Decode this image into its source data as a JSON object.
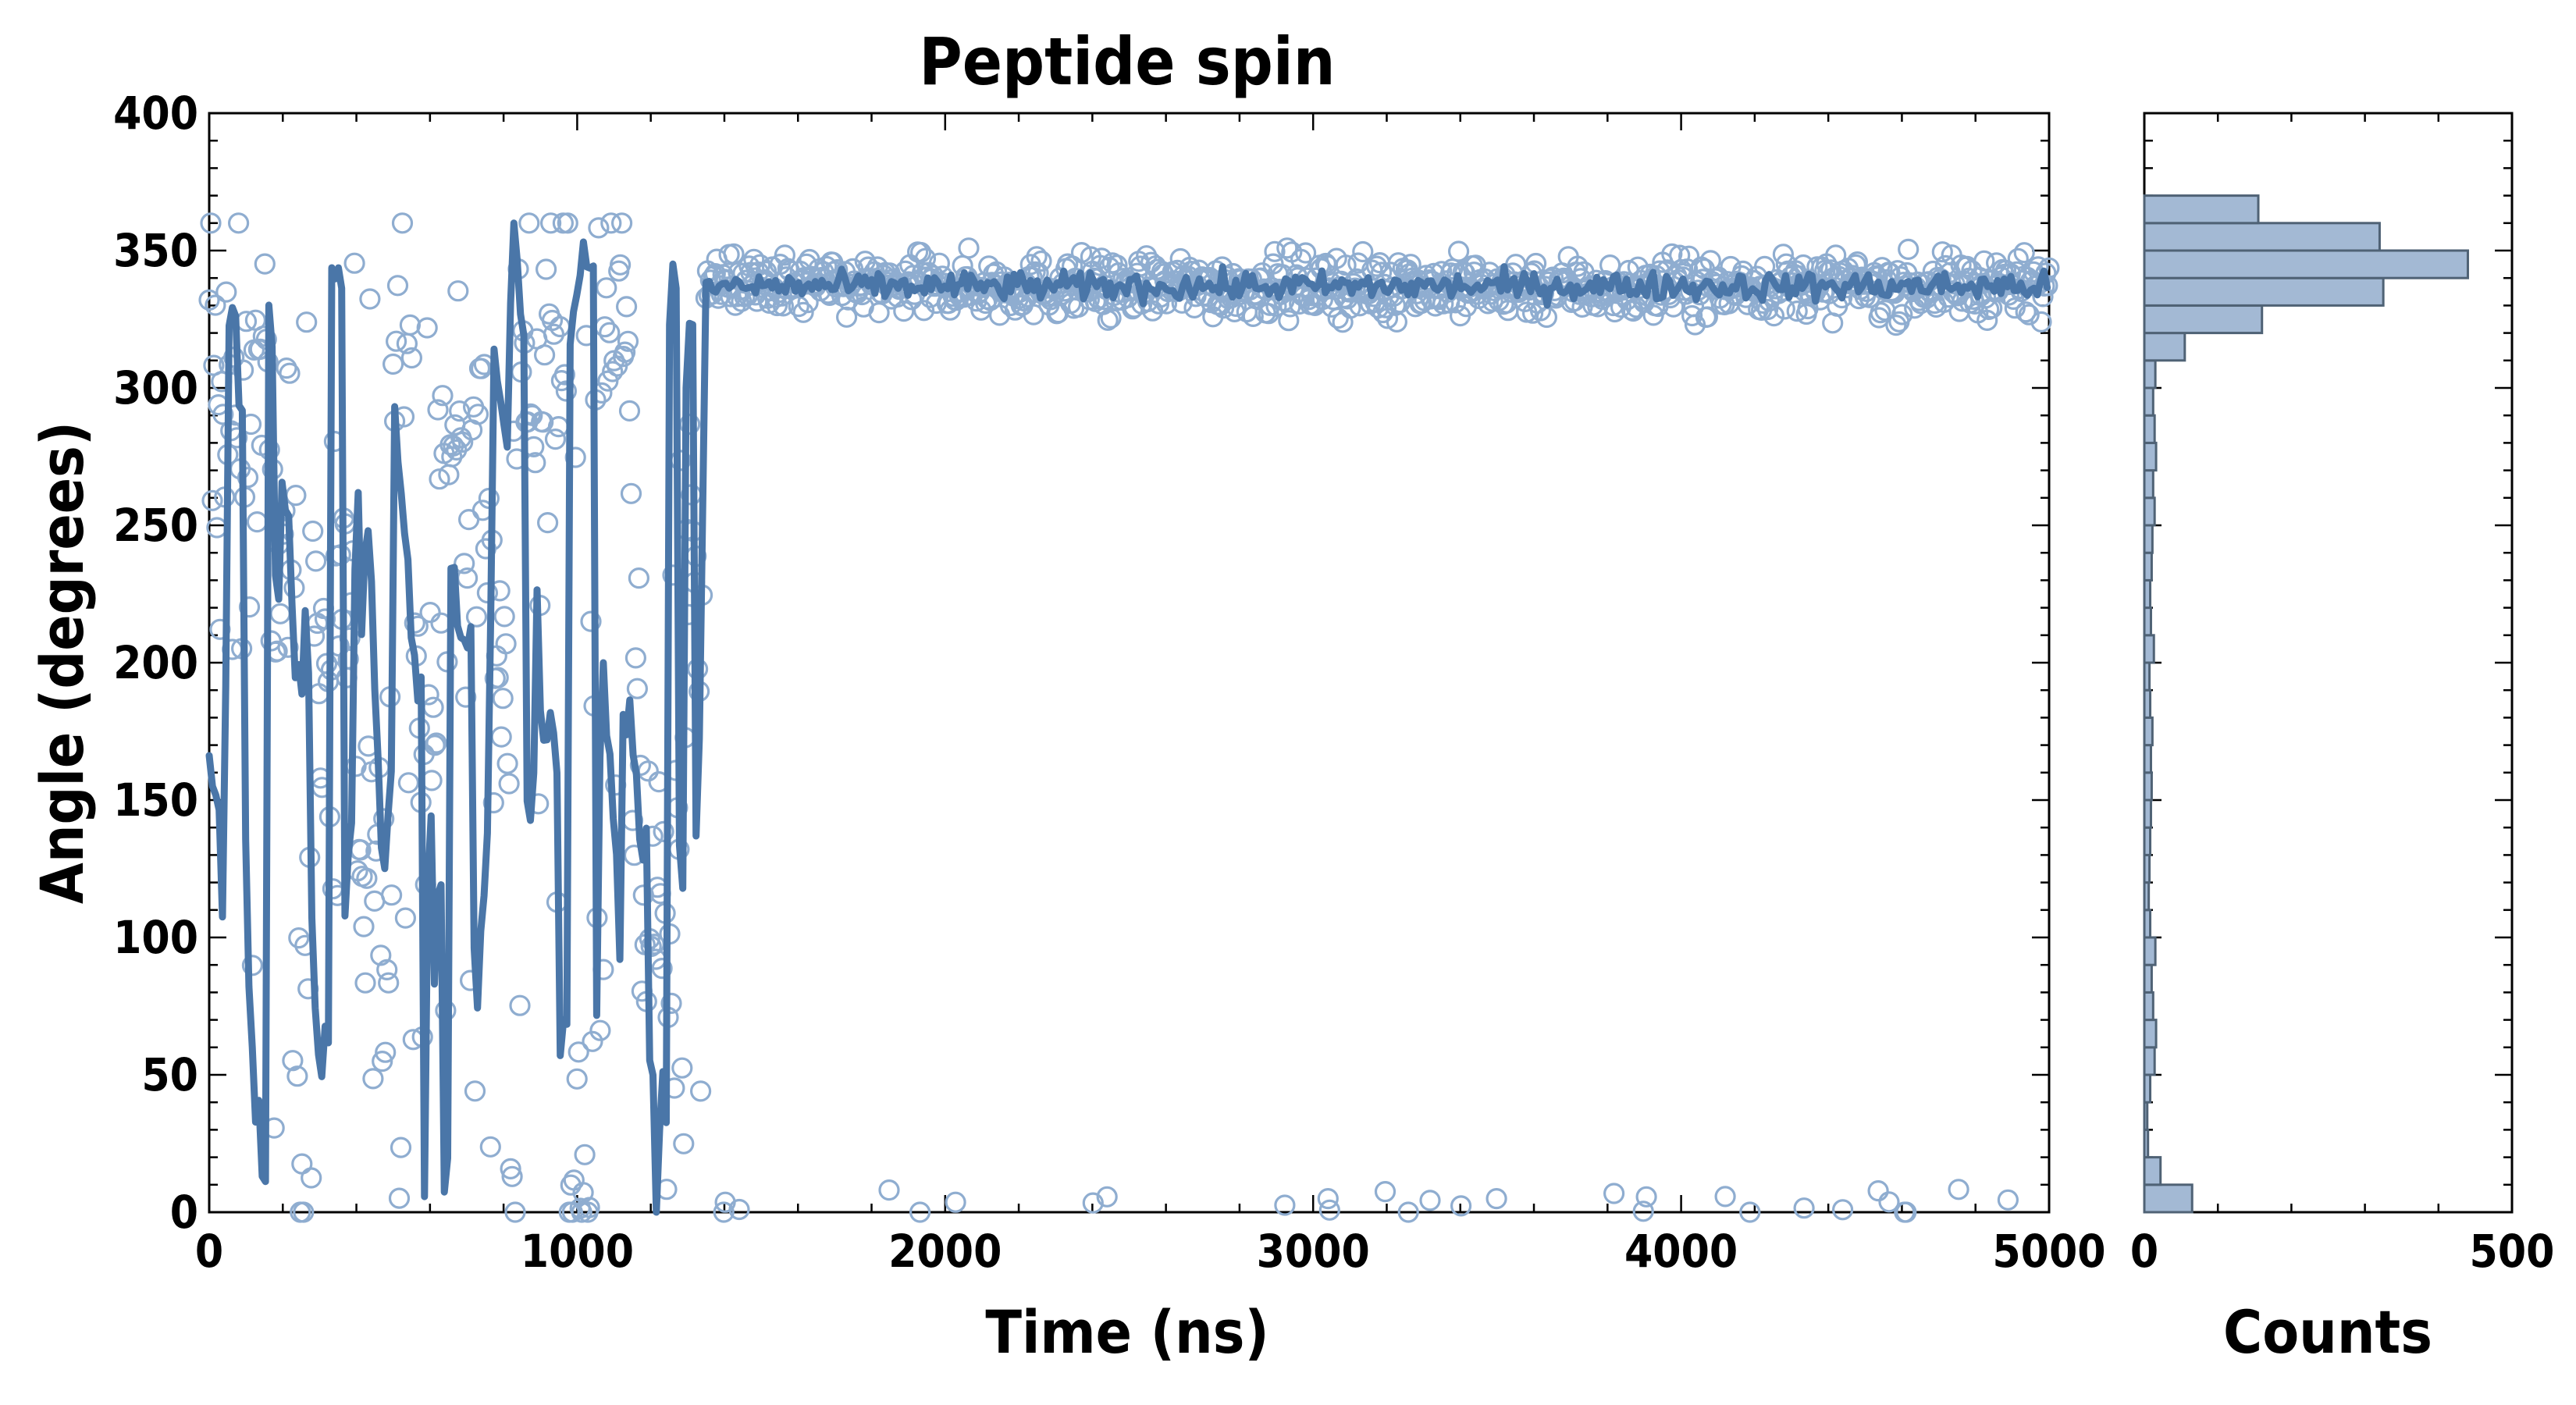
{
  "chart_data": [
    {
      "panel": "main",
      "type": "scatter",
      "title": "Peptide spin",
      "xlabel": "Time (ns)",
      "ylabel": "Angle (degrees)",
      "xlim": [
        0,
        5000
      ],
      "ylim": [
        0,
        400
      ],
      "xticks": [
        0,
        1000,
        2000,
        3000,
        4000,
        5000
      ],
      "yticks": [
        0,
        50,
        100,
        150,
        200,
        250,
        300,
        350,
        400
      ],
      "grid": false,
      "series": [
        {
          "kind": "points",
          "marker": "open-circle",
          "color": "#8fadd0",
          "description_segments": [
            {
              "x_range": [
                0,
                1350
              ],
              "y_range": [
                0,
                360
              ],
              "pattern": "scattered across full range"
            },
            {
              "x_range": [
                1350,
                5000
              ],
              "y_center": 337,
              "y_spread": 20,
              "pattern": "dense band"
            },
            {
              "x_range": [
                1400,
                5000
              ],
              "y_center": 2,
              "y_spread": 8,
              "pattern": "sparse near zero"
            }
          ]
        },
        {
          "kind": "line",
          "color": "#4a76a8",
          "description": "running average, erratic 0-360 before ~1350 ns, then ~337"
        }
      ]
    },
    {
      "panel": "side",
      "type": "bar",
      "orientation": "horizontal",
      "xlabel": "Counts",
      "xlim": [
        0,
        500
      ],
      "xticks": [
        0,
        500
      ],
      "ylim": [
        0,
        400
      ],
      "bin_width": 10,
      "bins": [
        {
          "y": 0,
          "count": 65
        },
        {
          "y": 10,
          "count": 22
        },
        {
          "y": 20,
          "count": 5
        },
        {
          "y": 30,
          "count": 4
        },
        {
          "y": 40,
          "count": 8
        },
        {
          "y": 50,
          "count": 14
        },
        {
          "y": 60,
          "count": 16
        },
        {
          "y": 70,
          "count": 12
        },
        {
          "y": 80,
          "count": 10
        },
        {
          "y": 90,
          "count": 15
        },
        {
          "y": 100,
          "count": 8
        },
        {
          "y": 110,
          "count": 6
        },
        {
          "y": 120,
          "count": 7
        },
        {
          "y": 130,
          "count": 8
        },
        {
          "y": 140,
          "count": 9
        },
        {
          "y": 150,
          "count": 10
        },
        {
          "y": 160,
          "count": 9
        },
        {
          "y": 170,
          "count": 11
        },
        {
          "y": 180,
          "count": 8
        },
        {
          "y": 190,
          "count": 7
        },
        {
          "y": 200,
          "count": 13
        },
        {
          "y": 210,
          "count": 9
        },
        {
          "y": 220,
          "count": 8
        },
        {
          "y": 230,
          "count": 10
        },
        {
          "y": 240,
          "count": 11
        },
        {
          "y": 250,
          "count": 14
        },
        {
          "y": 260,
          "count": 12
        },
        {
          "y": 270,
          "count": 16
        },
        {
          "y": 280,
          "count": 14
        },
        {
          "y": 290,
          "count": 12
        },
        {
          "y": 300,
          "count": 15
        },
        {
          "y": 310,
          "count": 55
        },
        {
          "y": 320,
          "count": 160
        },
        {
          "y": 330,
          "count": 325
        },
        {
          "y": 340,
          "count": 440
        },
        {
          "y": 350,
          "count": 320
        },
        {
          "y": 360,
          "count": 155
        }
      ],
      "bar_fill": "#a3b9d4",
      "bar_edge": "#4f6275"
    }
  ]
}
